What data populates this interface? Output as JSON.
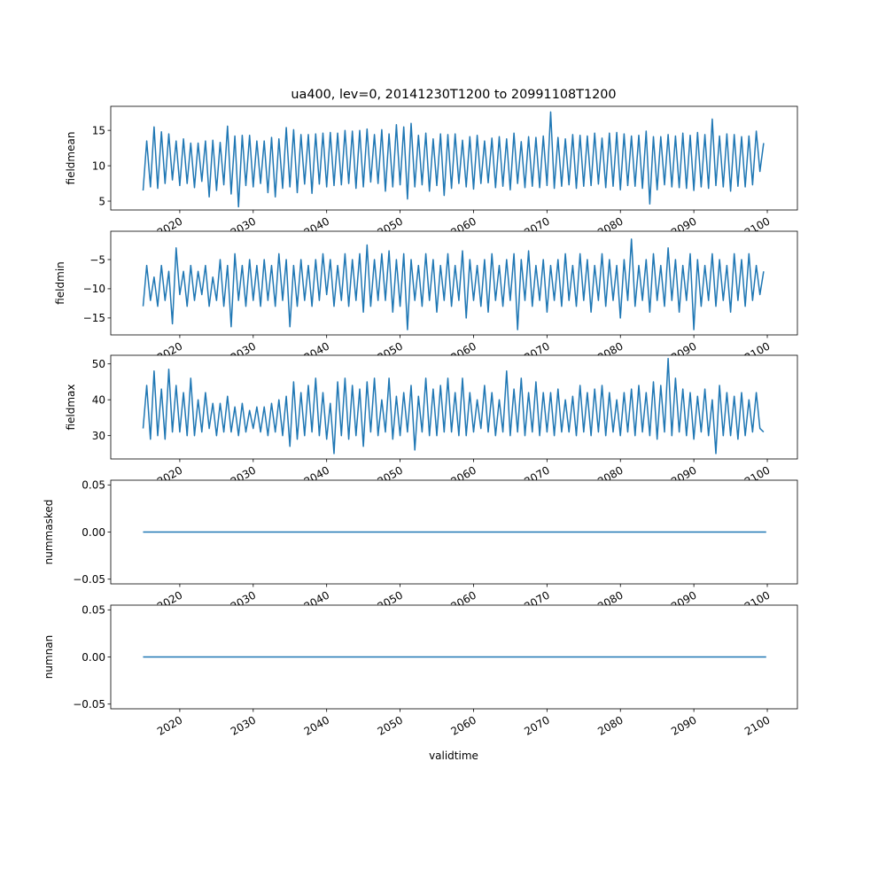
{
  "chart_data": {
    "type": "line",
    "title": "ua400, lev=0, 20141230T1200 to 20991108T1200",
    "xlabel": "validtime",
    "xlim": [
      2010.6,
      2104.1
    ],
    "xticks": [
      2020,
      2030,
      2040,
      2050,
      2060,
      2070,
      2080,
      2090,
      2100
    ],
    "x_start": 2015.0,
    "x_step": 0.5,
    "line_color": "#1f77b4",
    "panels": [
      {
        "ylabel": "fieldmean",
        "ylim": [
          3.75,
          18.4
        ],
        "yticks": [
          5,
          10,
          15
        ],
        "ytick_labels": [
          "5",
          "10",
          "15"
        ],
        "values": [
          6.5,
          13.5,
          7,
          15.5,
          6.8,
          14.8,
          7.5,
          14.5,
          8,
          13.5,
          7.2,
          13.8,
          7.5,
          13.2,
          6.9,
          13.2,
          7.8,
          13.5,
          5.6,
          13.6,
          6.5,
          13.3,
          7.3,
          15.6,
          6,
          14.2,
          4.2,
          14.3,
          7.2,
          14.3,
          7,
          13.5,
          7.5,
          13.5,
          6.2,
          14,
          5.6,
          13.8,
          6.8,
          15.4,
          7,
          15.1,
          6.2,
          14.4,
          7.4,
          14.4,
          6.1,
          14.5,
          7.4,
          14.6,
          7,
          14.7,
          7.2,
          14.6,
          7.3,
          15,
          7.5,
          14.9,
          6.8,
          15,
          7,
          15.2,
          7.7,
          14.4,
          7.5,
          15.1,
          6.4,
          14.5,
          7,
          15.8,
          7.3,
          15.5,
          5.3,
          16,
          7,
          14.3,
          7.3,
          14.6,
          6.4,
          13.8,
          7.2,
          14.5,
          5.8,
          14.4,
          6.8,
          14.5,
          7.5,
          13.6,
          7,
          14.1,
          6.7,
          14.3,
          7.5,
          13.5,
          7.6,
          13.9,
          6.9,
          14.1,
          7.1,
          13.8,
          6.6,
          14.6,
          7.5,
          13.4,
          6.9,
          14.1,
          7.1,
          14,
          6.9,
          14.2,
          7.2,
          17.6,
          6.8,
          14,
          7.1,
          13.8,
          7.3,
          14.4,
          6.8,
          14.3,
          7.1,
          14.2,
          7.2,
          14.6,
          7.4,
          13.9,
          6.9,
          14.6,
          7.1,
          14.7,
          6.6,
          14.5,
          7.2,
          14.2,
          7.1,
          14.3,
          6.8,
          14.9,
          4.6,
          14.1,
          6.6,
          14.1,
          7.3,
          14.4,
          7,
          14.2,
          6.9,
          14.6,
          6.8,
          14.3,
          6.5,
          14.7,
          7,
          14.4,
          6.8,
          16.6,
          7.2,
          14.2,
          7,
          14.5,
          6.4,
          14.4,
          7.1,
          14.1,
          7,
          14.2,
          7.3,
          14.9,
          9.2,
          13.2
        ]
      },
      {
        "ylabel": "fieldmin",
        "ylim": [
          -17.9,
          -0.15
        ],
        "yticks": [
          -15,
          -10,
          -5
        ],
        "ytick_labels": [
          "−15",
          "−10",
          "−5"
        ],
        "values": [
          -13,
          -6,
          -12,
          -8,
          -13,
          -6,
          -12,
          -7,
          -16,
          -3,
          -11,
          -7,
          -13,
          -6,
          -12,
          -7,
          -11,
          -6,
          -13,
          -8,
          -12,
          -5,
          -13,
          -6,
          -16.5,
          -4,
          -12,
          -6,
          -13,
          -5,
          -12,
          -6,
          -13,
          -5,
          -12,
          -6,
          -13,
          -4,
          -12,
          -5,
          -16.5,
          -6,
          -13,
          -5,
          -12,
          -6,
          -13,
          -5,
          -12,
          -4,
          -11,
          -5,
          -13,
          -6,
          -12,
          -4,
          -13,
          -5,
          -12,
          -4,
          -14,
          -2.5,
          -13,
          -5,
          -12,
          -4,
          -12,
          -3.5,
          -14,
          -5,
          -13,
          -4,
          -17,
          -5,
          -12,
          -6,
          -13,
          -4,
          -12,
          -5,
          -14,
          -6,
          -12,
          -4,
          -13,
          -6,
          -12,
          -3.5,
          -15,
          -5,
          -12,
          -6,
          -13,
          -5,
          -14,
          -4,
          -12,
          -6,
          -13,
          -5,
          -12,
          -4,
          -17,
          -5,
          -12,
          -3.5,
          -13,
          -6,
          -12,
          -5,
          -14,
          -6,
          -12,
          -5,
          -13,
          -4,
          -12,
          -6,
          -13,
          -4,
          -12,
          -5,
          -14,
          -6,
          -12,
          -4,
          -13,
          -5,
          -12,
          -6,
          -15,
          -5,
          -12,
          -1.5,
          -13,
          -6,
          -12,
          -5,
          -14,
          -4,
          -12,
          -6,
          -13,
          -3,
          -12,
          -5,
          -14,
          -6,
          -12,
          -4,
          -17,
          -5,
          -13,
          -6,
          -12,
          -4,
          -13,
          -5,
          -12,
          -6,
          -14,
          -4,
          -12,
          -5,
          -13,
          -4,
          -12,
          -6,
          -11,
          -7
        ]
      },
      {
        "ylabel": "fieldmax",
        "ylim": [
          23.5,
          52.4
        ],
        "yticks": [
          30,
          40,
          50
        ],
        "ytick_labels": [
          "30",
          "40",
          "50"
        ],
        "values": [
          32,
          44,
          29,
          48,
          30,
          43,
          29,
          48.5,
          31,
          44,
          31,
          42,
          30,
          46,
          30,
          40,
          31,
          42,
          32,
          39,
          30,
          39,
          31,
          41,
          31,
          38,
          30,
          39,
          31,
          37,
          32,
          38,
          31,
          38,
          30,
          39,
          31,
          40,
          30,
          41,
          27,
          45,
          29,
          42,
          30,
          44,
          31,
          46,
          30,
          42,
          29,
          39,
          25,
          45,
          30,
          46,
          29,
          44,
          30,
          43,
          27,
          45,
          31,
          46,
          30,
          40,
          31,
          46,
          29,
          41,
          30,
          42,
          31,
          44,
          26,
          41,
          31,
          46,
          30,
          43,
          30,
          44,
          31,
          46,
          31,
          42,
          30,
          46,
          30,
          42,
          31,
          40,
          32,
          44,
          31,
          42,
          30,
          40,
          31,
          48,
          30,
          43,
          31,
          46,
          30,
          42,
          31,
          45,
          30,
          42,
          31,
          42,
          30,
          43,
          31,
          40,
          31,
          41,
          30,
          44,
          31,
          42,
          30,
          43,
          31,
          44,
          30,
          42,
          31,
          40,
          30,
          42,
          31,
          43,
          30,
          44,
          31,
          42,
          30,
          45,
          29,
          44,
          31,
          51.5,
          30,
          46,
          31,
          43,
          30,
          42,
          29,
          41,
          31,
          43,
          30,
          40,
          25,
          44,
          30,
          42,
          30,
          41,
          29,
          42,
          30,
          40,
          31,
          42,
          32,
          31
        ]
      },
      {
        "ylabel": "nummasked",
        "ylim": [
          -0.055,
          0.055
        ],
        "yticks": [
          -0.05,
          0,
          0.05
        ],
        "ytick_labels": [
          "−0.05",
          "0.00",
          "0.05"
        ],
        "constant": 0,
        "x_range": [
          2015.0,
          2099.85
        ]
      },
      {
        "ylabel": "numnan",
        "ylim": [
          -0.055,
          0.055
        ],
        "yticks": [
          -0.05,
          0,
          0.05
        ],
        "ytick_labels": [
          "−0.05",
          "0.00",
          "0.05"
        ],
        "constant": 0,
        "x_range": [
          2015.0,
          2099.85
        ]
      }
    ]
  }
}
